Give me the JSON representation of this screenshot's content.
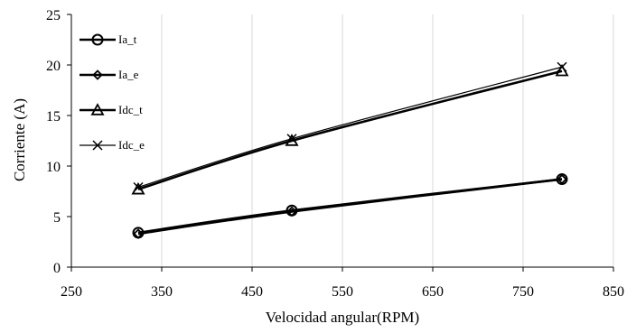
{
  "chart_data": {
    "type": "line",
    "title": "",
    "xlabel": "Velocidad angular(RPM)",
    "ylabel": "Corriente (A)",
    "xlim": [
      250,
      850
    ],
    "ylim": [
      0,
      25
    ],
    "xticks": [
      250,
      350,
      450,
      550,
      650,
      750,
      850
    ],
    "yticks": [
      0,
      5,
      10,
      15,
      20,
      25
    ],
    "grid": "vertical",
    "legend_position": "left",
    "series": [
      {
        "name": "Ia_t",
        "marker": "circle",
        "line": "thick",
        "x": [
          324,
          494,
          793
        ],
        "y": [
          3.4,
          5.6,
          8.7
        ]
      },
      {
        "name": "Ia_e",
        "marker": "diamond",
        "line": "thick",
        "x": [
          324,
          494,
          793
        ],
        "y": [
          3.3,
          5.5,
          8.7
        ]
      },
      {
        "name": "Idc_t",
        "marker": "triangle",
        "line": "thick",
        "x": [
          324,
          494,
          793
        ],
        "y": [
          7.7,
          12.5,
          19.4
        ]
      },
      {
        "name": "Idc_e",
        "marker": "x",
        "line": "thin",
        "x": [
          324,
          494,
          793
        ],
        "y": [
          7.9,
          12.7,
          19.8
        ]
      }
    ],
    "colors": {
      "line": "#000000",
      "grid": "#d9d9d9"
    }
  }
}
